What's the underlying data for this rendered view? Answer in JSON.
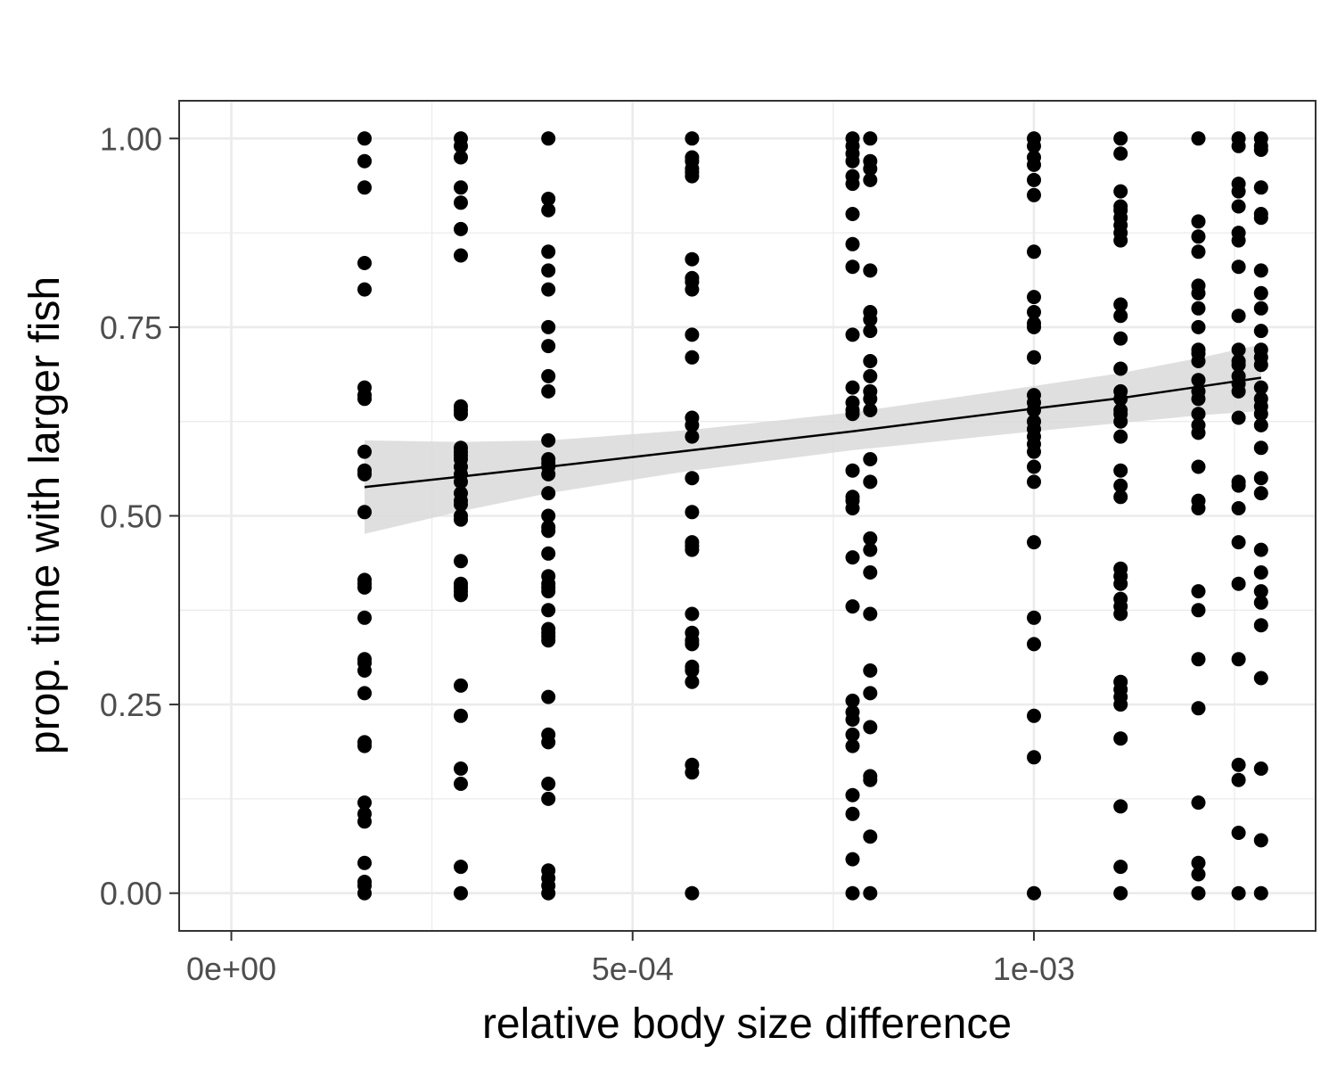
{
  "chart_data": {
    "type": "scatter",
    "title": "",
    "xlabel": "relative body size difference",
    "ylabel": "prop. time with larger fish",
    "xlim": [
      -6.5e-05,
      0.001351
    ],
    "ylim": [
      -0.05,
      1.05
    ],
    "x_ticks": [
      0,
      0.0005,
      0.001
    ],
    "x_tick_labels": [
      "0e+00",
      "5e-04",
      "1e-03"
    ],
    "y_ticks": [
      0,
      0.25,
      0.5,
      0.75,
      1
    ],
    "y_tick_labels": [
      "0.00",
      "0.25",
      "0.50",
      "0.75",
      "1.00"
    ],
    "grid": true,
    "legend": "none",
    "colors": {
      "points": "#000000",
      "fit_line": "#000000",
      "confidence_band": "#d9d9d9",
      "grid": "#ebebeb",
      "panel_border": "#333333",
      "tick_text": "#4d4d4d"
    },
    "groups": [
      {
        "x": 0.000166,
        "y": [
          1.0,
          0.97,
          0.935,
          0.835,
          0.8,
          0.67,
          0.66,
          0.655,
          0.585,
          0.56,
          0.555,
          0.505,
          0.415,
          0.41,
          0.405,
          0.365,
          0.31,
          0.305,
          0.295,
          0.265,
          0.2,
          0.195,
          0.12,
          0.105,
          0.095,
          0.04,
          0.015,
          0.01,
          0.0
        ]
      },
      {
        "x": 0.000286,
        "y": [
          1.0,
          0.99,
          0.975,
          0.935,
          0.915,
          0.88,
          0.845,
          0.645,
          0.64,
          0.635,
          0.59,
          0.585,
          0.58,
          0.575,
          0.565,
          0.555,
          0.545,
          0.53,
          0.52,
          0.515,
          0.5,
          0.495,
          0.44,
          0.41,
          0.405,
          0.4,
          0.395,
          0.275,
          0.235,
          0.165,
          0.145,
          0.035,
          0.0
        ]
      },
      {
        "x": 0.000395,
        "y": [
          1.0,
          0.92,
          0.905,
          0.85,
          0.825,
          0.8,
          0.75,
          0.725,
          0.685,
          0.665,
          0.6,
          0.575,
          0.57,
          0.565,
          0.555,
          0.53,
          0.5,
          0.485,
          0.48,
          0.45,
          0.42,
          0.41,
          0.405,
          0.4,
          0.375,
          0.35,
          0.345,
          0.34,
          0.335,
          0.26,
          0.21,
          0.2,
          0.145,
          0.125,
          0.03,
          0.02,
          0.01,
          0.0
        ]
      },
      {
        "x": 0.000574,
        "y": [
          1.0,
          0.975,
          0.97,
          0.96,
          0.955,
          0.95,
          0.84,
          0.815,
          0.81,
          0.8,
          0.74,
          0.71,
          0.63,
          0.62,
          0.605,
          0.55,
          0.505,
          0.465,
          0.46,
          0.455,
          0.37,
          0.345,
          0.335,
          0.33,
          0.3,
          0.295,
          0.28,
          0.17,
          0.16,
          0.0
        ]
      },
      {
        "x": 0.000774,
        "y": [
          1.0,
          0.99,
          0.98,
          0.97,
          0.95,
          0.94,
          0.9,
          0.86,
          0.83,
          0.74,
          0.67,
          0.65,
          0.64,
          0.635,
          0.56,
          0.525,
          0.52,
          0.51,
          0.445,
          0.38,
          0.255,
          0.24,
          0.23,
          0.21,
          0.195,
          0.13,
          0.105,
          0.045,
          0.0
        ]
      },
      {
        "x": 0.000796,
        "y": [
          1.0,
          0.97,
          0.96,
          0.945,
          0.825,
          0.77,
          0.76,
          0.745,
          0.705,
          0.685,
          0.665,
          0.655,
          0.64,
          0.575,
          0.545,
          0.47,
          0.455,
          0.425,
          0.37,
          0.295,
          0.265,
          0.22,
          0.155,
          0.15,
          0.075,
          0.0
        ]
      },
      {
        "x": 0.001,
        "y": [
          1.0,
          0.99,
          0.975,
          0.965,
          0.945,
          0.925,
          0.85,
          0.79,
          0.77,
          0.755,
          0.75,
          0.71,
          0.66,
          0.65,
          0.64,
          0.625,
          0.615,
          0.605,
          0.595,
          0.585,
          0.565,
          0.545,
          0.465,
          0.365,
          0.33,
          0.235,
          0.18,
          0.0
        ]
      },
      {
        "x": 0.001108,
        "y": [
          1.0,
          0.98,
          0.93,
          0.91,
          0.905,
          0.895,
          0.885,
          0.875,
          0.865,
          0.78,
          0.765,
          0.735,
          0.695,
          0.665,
          0.655,
          0.64,
          0.635,
          0.625,
          0.605,
          0.56,
          0.54,
          0.525,
          0.43,
          0.42,
          0.41,
          0.39,
          0.38,
          0.37,
          0.28,
          0.27,
          0.26,
          0.25,
          0.205,
          0.115,
          0.035,
          0.0
        ]
      },
      {
        "x": 0.001205,
        "y": [
          1.0,
          0.89,
          0.87,
          0.85,
          0.805,
          0.795,
          0.775,
          0.75,
          0.72,
          0.715,
          0.705,
          0.68,
          0.665,
          0.655,
          0.635,
          0.62,
          0.61,
          0.565,
          0.52,
          0.51,
          0.4,
          0.375,
          0.31,
          0.245,
          0.12,
          0.04,
          0.025,
          0.0
        ]
      },
      {
        "x": 0.001255,
        "y": [
          1.0,
          0.99,
          0.94,
          0.93,
          0.91,
          0.875,
          0.865,
          0.83,
          0.765,
          0.72,
          0.705,
          0.7,
          0.685,
          0.675,
          0.665,
          0.63,
          0.545,
          0.54,
          0.51,
          0.465,
          0.41,
          0.31,
          0.17,
          0.15,
          0.08,
          0.0
        ]
      },
      {
        "x": 0.001283,
        "y": [
          1.0,
          0.99,
          0.985,
          0.935,
          0.9,
          0.895,
          0.825,
          0.795,
          0.775,
          0.745,
          0.72,
          0.71,
          0.7,
          0.67,
          0.655,
          0.645,
          0.635,
          0.62,
          0.59,
          0.55,
          0.53,
          0.455,
          0.425,
          0.4,
          0.385,
          0.355,
          0.285,
          0.165,
          0.07,
          0.0
        ]
      }
    ],
    "fit": {
      "x": [
        0.000166,
        0.000286,
        0.000395,
        0.000574,
        0.000774,
        0.001,
        0.001108,
        0.001205,
        0.001283
      ],
      "y": [
        0.538,
        0.552,
        0.565,
        0.587,
        0.612,
        0.642,
        0.656,
        0.671,
        0.683
      ],
      "lower": [
        0.476,
        0.506,
        0.53,
        0.56,
        0.587,
        0.612,
        0.623,
        0.633,
        0.639
      ],
      "upper": [
        0.6,
        0.598,
        0.6,
        0.614,
        0.637,
        0.672,
        0.689,
        0.709,
        0.727
      ]
    }
  }
}
